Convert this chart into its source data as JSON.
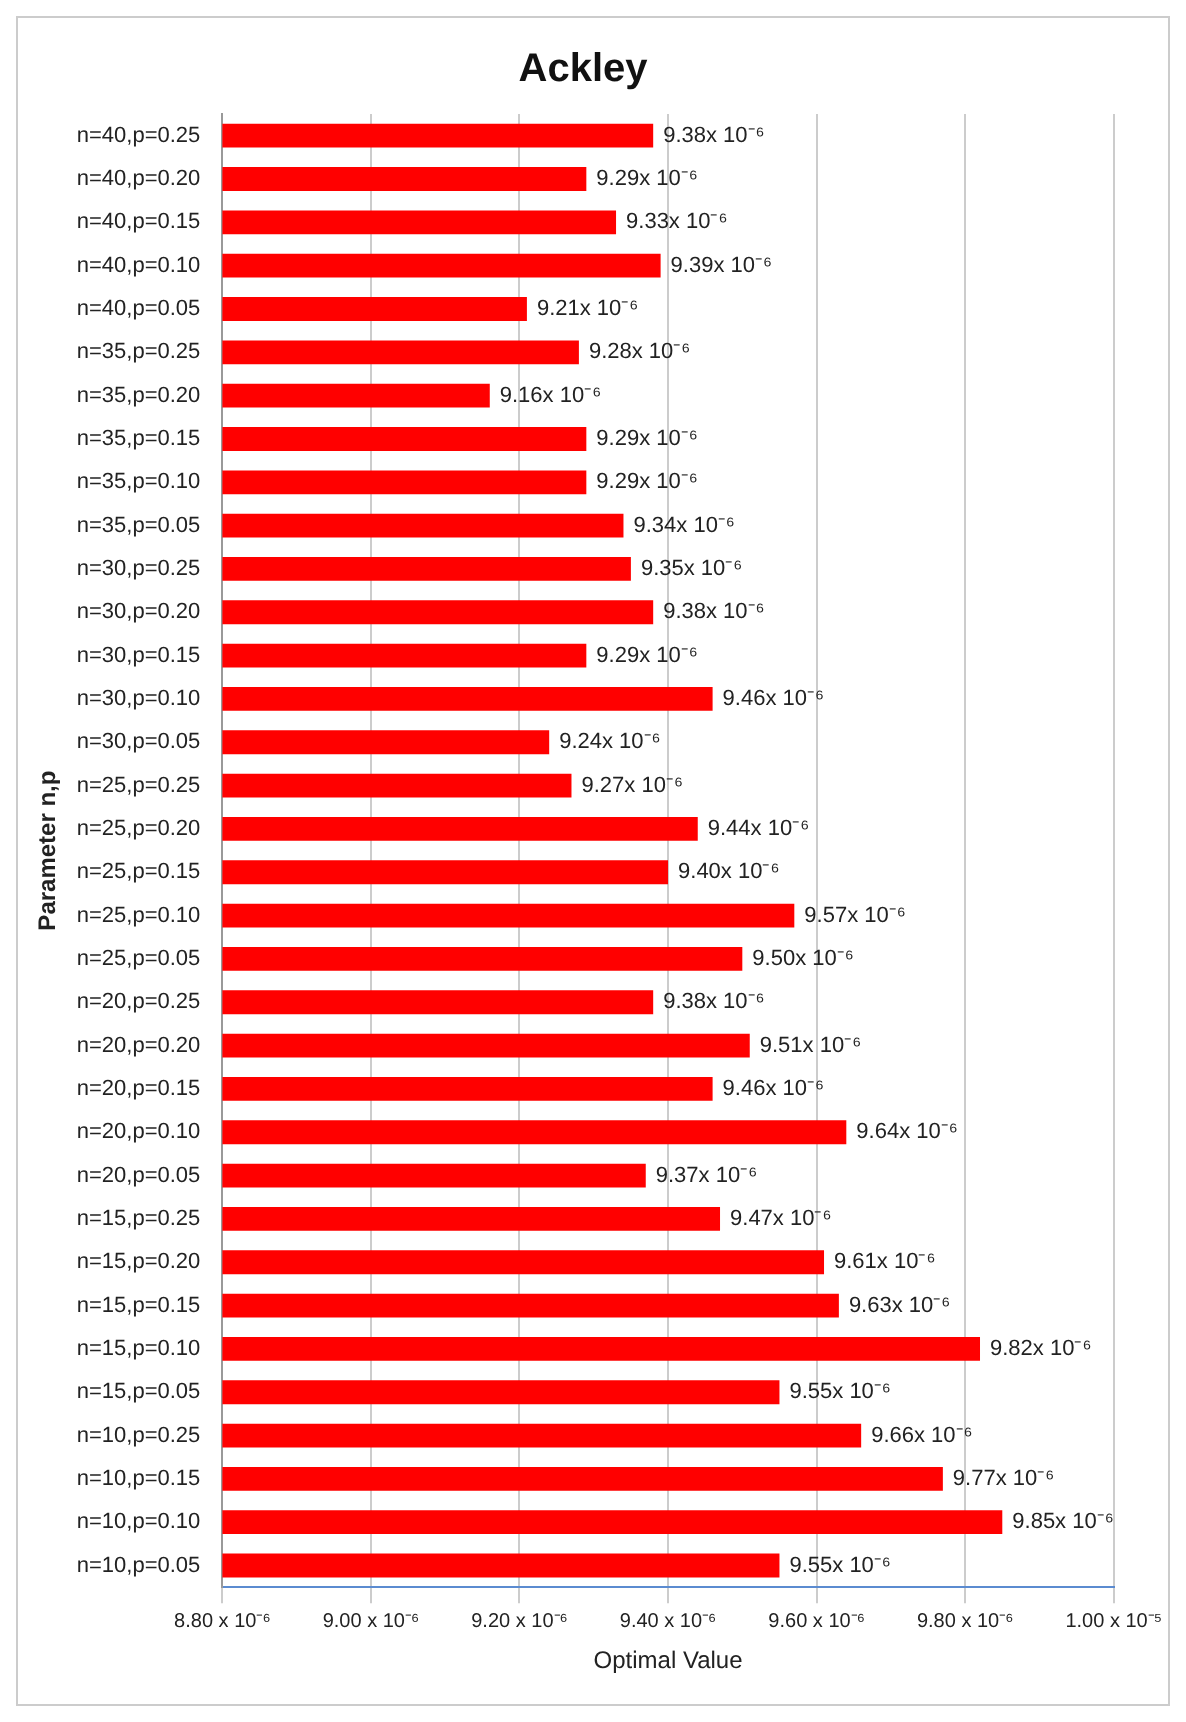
{
  "chart_data": {
    "type": "bar",
    "orientation": "horizontal",
    "title": "Ackley",
    "xlabel": "Optimal Value",
    "ylabel": "Parameter n,p",
    "categories": [
      "n=40,p=0.25",
      "n=40,p=0.20",
      "n=40,p=0.15",
      "n=40,p=0.10",
      "n=40,p=0.05",
      "n=35,p=0.25",
      "n=35,p=0.20",
      "n=35,p=0.15",
      "n=35,p=0.10",
      "n=35,p=0.05",
      "n=30,p=0.25",
      "n=30,p=0.20",
      "n=30,p=0.15",
      "n=30,p=0.10",
      "n=30,p=0.05",
      "n=25,p=0.25",
      "n=25,p=0.20",
      "n=25,p=0.15",
      "n=25,p=0.10",
      "n=25,p=0.05",
      "n=20,p=0.25",
      "n=20,p=0.20",
      "n=20,p=0.15",
      "n=20,p=0.10",
      "n=20,p=0.05",
      "n=15,p=0.25",
      "n=15,p=0.20",
      "n=15,p=0.15",
      "n=15,p=0.10",
      "n=15,p=0.05",
      "n=10,p=0.25",
      "n=10,p=0.15",
      "n=10,p=0.10",
      "n=10,p=0.05"
    ],
    "values": [
      9.38e-06,
      9.29e-06,
      9.33e-06,
      9.39e-06,
      9.21e-06,
      9.28e-06,
      9.16e-06,
      9.29e-06,
      9.29e-06,
      9.34e-06,
      9.35e-06,
      9.38e-06,
      9.29e-06,
      9.46e-06,
      9.24e-06,
      9.27e-06,
      9.44e-06,
      9.4e-06,
      9.57e-06,
      9.5e-06,
      9.38e-06,
      9.51e-06,
      9.46e-06,
      9.64e-06,
      9.37e-06,
      9.47e-06,
      9.61e-06,
      9.63e-06,
      9.82e-06,
      9.55e-06,
      9.66e-06,
      9.77e-06,
      9.85e-06,
      9.55e-06
    ],
    "value_labels": [
      "9.38x 10⁻⁶",
      "9.29x 10⁻⁶",
      "9.33x 10⁻⁶",
      "9.39x 10⁻⁶",
      "9.21x 10⁻⁶",
      "9.28x 10⁻⁶",
      "9.16x 10⁻⁶",
      "9.29x 10⁻⁶",
      "9.29x 10⁻⁶",
      "9.34x 10⁻⁶",
      "9.35x 10⁻⁶",
      "9.38x 10⁻⁶",
      "9.29x 10⁻⁶",
      "9.46x 10⁻⁶",
      "9.24x 10⁻⁶",
      "9.27x 10⁻⁶",
      "9.44x 10⁻⁶",
      "9.40x 10⁻⁶",
      "9.57x 10⁻⁶",
      "9.50x 10⁻⁶",
      "9.38x 10⁻⁶",
      "9.51x 10⁻⁶",
      "9.46x 10⁻⁶",
      "9.64x 10⁻⁶",
      "9.37x 10⁻⁶",
      "9.47x 10⁻⁶",
      "9.61x 10⁻⁶",
      "9.63x 10⁻⁶",
      "9.82x 10⁻⁶",
      "9.55x 10⁻⁶",
      "9.66x 10⁻⁶",
      "9.77x 10⁻⁶",
      "9.85x 10⁻⁶",
      "9.55x 10⁻⁶"
    ],
    "color": "#ff0000",
    "xlim": [
      8.8e-06,
      1e-05
    ],
    "xticks": [
      {
        "value": 8.8e-06,
        "label": "8.80 x 10⁻⁶"
      },
      {
        "value": 9e-06,
        "label": "9.00 x 10⁻⁶"
      },
      {
        "value": 9.2e-06,
        "label": "9.20 x 10⁻⁶"
      },
      {
        "value": 9.4e-06,
        "label": "9.40 x 10⁻⁶"
      },
      {
        "value": 9.6e-06,
        "label": "9.60 x 10⁻⁶"
      },
      {
        "value": 9.8e-06,
        "label": "9.80 x 10⁻⁶"
      },
      {
        "value": 1e-05,
        "label": "1.00 x 10⁻⁵"
      }
    ],
    "grid": "x",
    "legend": false
  }
}
